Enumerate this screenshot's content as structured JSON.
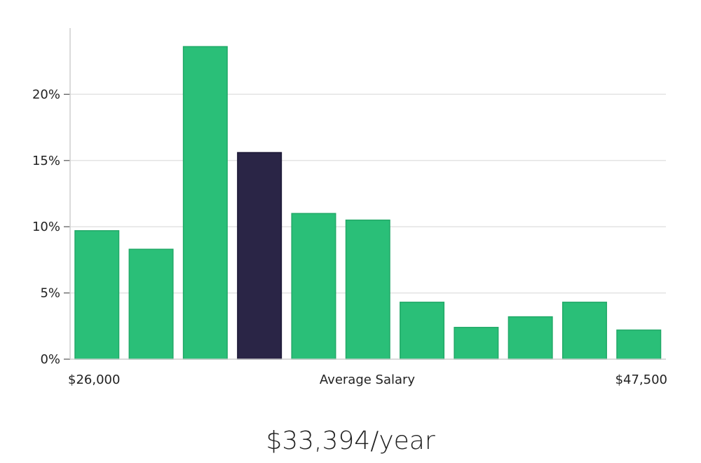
{
  "chart_data": {
    "type": "bar",
    "title": "",
    "xlabel": "Average Salary",
    "ylabel": "",
    "x_range_labels": {
      "min": "$26,000",
      "max": "$47,500"
    },
    "yticks": [
      "0%",
      "5%",
      "10%",
      "15%",
      "20%"
    ],
    "ylim": [
      0,
      25
    ],
    "grid": true,
    "values": [
      9.7,
      8.3,
      23.6,
      15.6,
      11.0,
      10.5,
      4.3,
      2.4,
      3.2,
      4.3,
      2.2
    ],
    "highlight_index": 3
  },
  "colors": {
    "bar": "#2abf78",
    "bar_highlight": "#2a2546",
    "grid": "#e3e3e3",
    "axis": "#cfcfcf"
  },
  "headline": "$33,394/year"
}
